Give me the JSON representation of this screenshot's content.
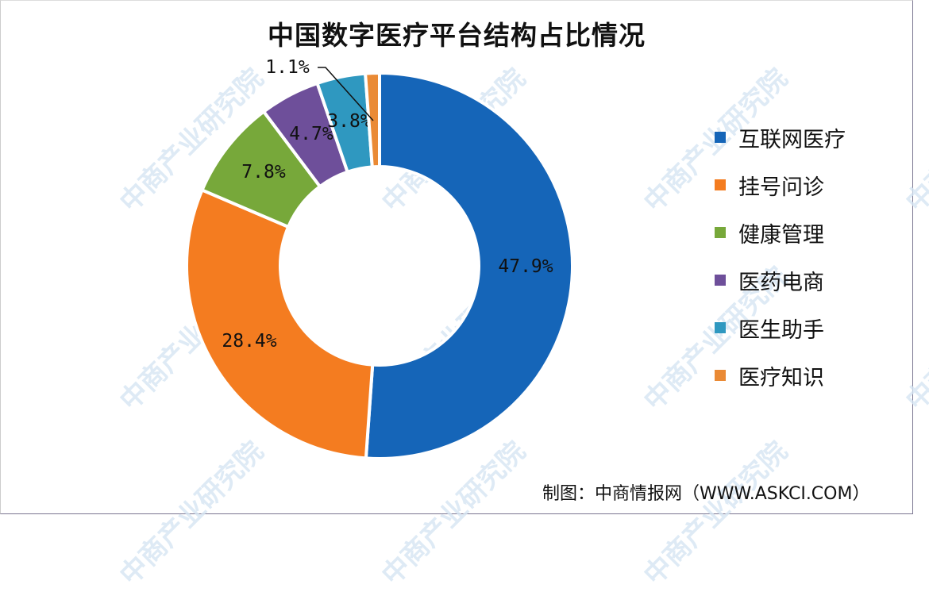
{
  "title": "中国数字医疗平台结构占比情况",
  "source": "制图：中商情报网（WWW.ASKCI.COM）",
  "watermark": "中商产业研究院",
  "chart_data": {
    "type": "pie",
    "subtype": "donut",
    "title": "中国数字医疗平台结构占比情况",
    "categories": [
      "互联网医疗",
      "挂号问诊",
      "健康管理",
      "医药电商",
      "医生助手",
      "医疗知识"
    ],
    "values": [
      47.9,
      28.4,
      7.8,
      4.7,
      3.8,
      1.1
    ],
    "labels": [
      "47.9%",
      "28.4%",
      "7.8%",
      "4.7%",
      "3.8%",
      "1.1%"
    ],
    "colors": [
      "#1565b8",
      "#f47c20",
      "#77a83a",
      "#6e4f9a",
      "#2f98c0",
      "#ea8a35"
    ],
    "legend_position": "right",
    "unit": "%"
  },
  "legend": {
    "items": [
      {
        "label": "互联网医疗",
        "color": "#1565b8"
      },
      {
        "label": "挂号问诊",
        "color": "#f47c20"
      },
      {
        "label": "健康管理",
        "color": "#77a83a"
      },
      {
        "label": "医药电商",
        "color": "#6e4f9a"
      },
      {
        "label": "医生助手",
        "color": "#2f98c0"
      },
      {
        "label": "医疗知识",
        "color": "#ea8a35"
      }
    ]
  }
}
